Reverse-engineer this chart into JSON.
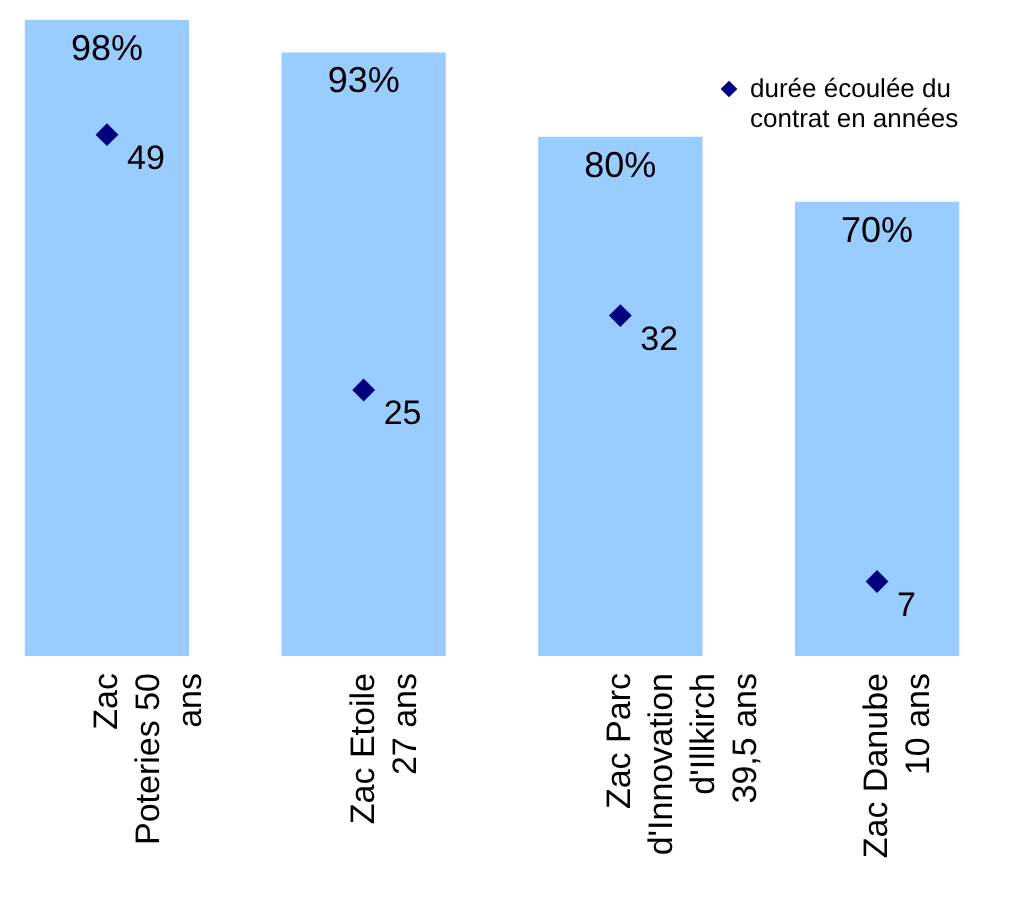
{
  "chart_data": {
    "type": "bar",
    "categories": [
      "Zac Poteries 50 ans",
      "Zac Etoile 27 ans",
      "Zac Parc d'Innovation d'Illkirch 39,5 ans",
      "Zac Danube 10 ans"
    ],
    "series": [
      {
        "color": "#99ccff",
        "values": [
          98,
          93,
          80,
          70
        ],
        "value_labels": [
          "98%",
          "93%",
          "80%",
          "70%"
        ]
      },
      {
        "type": "scatter",
        "name": "durée écoulée du contrat en années",
        "color": "#000080",
        "axis": "y2",
        "marker": "diamond",
        "values": [
          49,
          25,
          32,
          7
        ],
        "value_labels": [
          "49",
          "25",
          "32",
          "7"
        ]
      }
    ],
    "legend": "top right"
  }
}
